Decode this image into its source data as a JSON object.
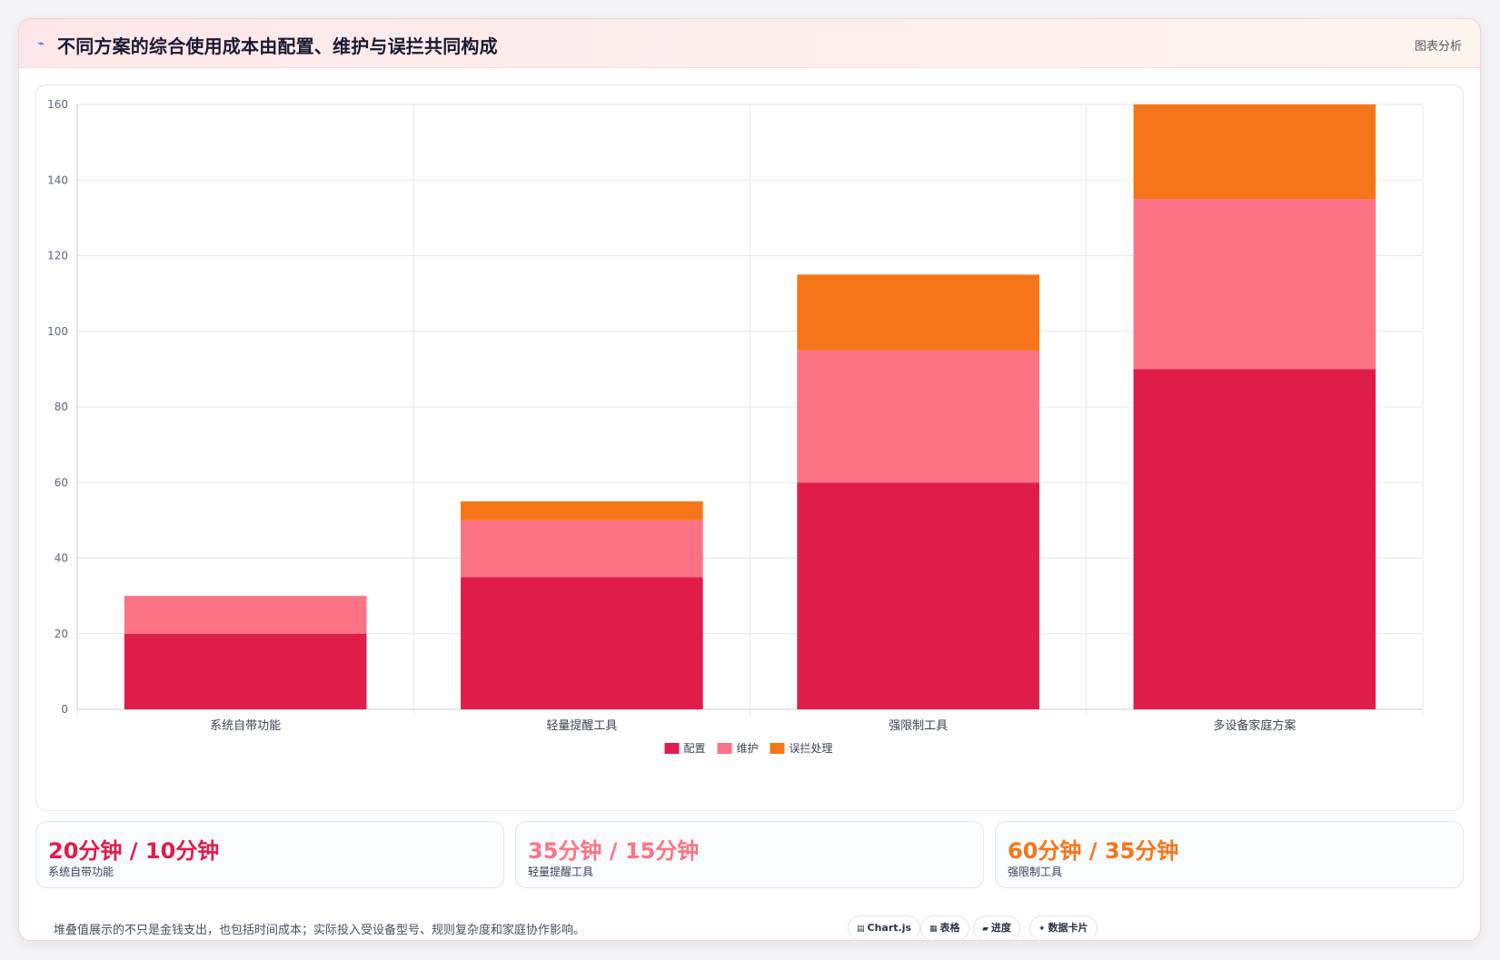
{
  "header": {
    "title": "不同方案的综合使用成本由配置、维护与误拦共同构成",
    "tag": "图表分析",
    "icon": "line-chart-icon"
  },
  "colors": {
    "config": "#e01c4a",
    "maintenance": "#fd7385",
    "misblock": "#f77519",
    "axis_text": "#5f6675",
    "grid": "#e5e7eb"
  },
  "chart_data": {
    "type": "bar",
    "stacked": true,
    "categories": [
      "系统自带功能",
      "轻量提醒工具",
      "强限制工具",
      "多设备家庭方案"
    ],
    "series": [
      {
        "name": "配置",
        "values": [
          20,
          35,
          60,
          90
        ]
      },
      {
        "name": "维护",
        "values": [
          10,
          15,
          35,
          45
        ]
      },
      {
        "name": "误拦处理",
        "values": [
          0,
          5,
          20,
          25
        ]
      }
    ],
    "ylim": [
      0,
      160
    ],
    "yticks": [
      0,
      20,
      40,
      60,
      80,
      100,
      120,
      140,
      160
    ],
    "title": "",
    "xlabel": "",
    "ylabel": "",
    "grid": true,
    "legend_position": "bottom"
  },
  "stats": [
    {
      "value": "20分钟 / 10分钟",
      "label": "系统自带功能"
    },
    {
      "value": "35分钟 / 15分钟",
      "label": "轻量提醒工具"
    },
    {
      "value": "60分钟 / 35分钟",
      "label": "强限制工具"
    }
  ],
  "footnote": "堆叠值展示的不只是金钱支出，也包括时间成本；实际投入受设备型号、规则复杂度和家庭协作影响。",
  "chips": [
    {
      "icon": "▤",
      "label": "Chart.js"
    },
    {
      "icon": "▦",
      "label": "表格"
    },
    {
      "icon": "▰",
      "label": "进度"
    },
    {
      "icon": "✦",
      "label": "数据卡片"
    }
  ]
}
